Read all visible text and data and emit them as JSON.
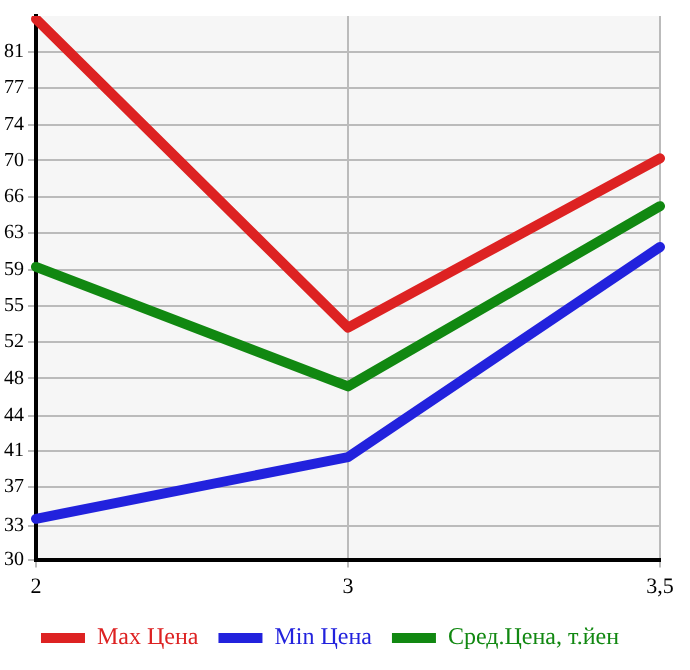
{
  "chart_data": {
    "type": "line",
    "categories": [
      "2",
      "3",
      "3,5"
    ],
    "series": [
      {
        "name": "Max Цена",
        "color": "#dd2222",
        "values": [
          84.3,
          53.3,
          70.3
        ]
      },
      {
        "name": "Min Цена",
        "color": "#2222dd",
        "values": [
          34.1,
          40.3,
          61.4
        ]
      },
      {
        "name": "Сред.Цена, т.йен",
        "color": "#118811",
        "values": [
          59.4,
          47.4,
          65.5
        ]
      }
    ],
    "ylim": [
      30,
      84.6
    ],
    "yticks": [
      30,
      {
        "value": 33.4,
        "label": "33"
      },
      {
        "value": 37.3,
        "label": "37"
      },
      {
        "value": 40.9,
        "label": "41"
      },
      {
        "value": 44.4,
        "label": "44"
      },
      {
        "value": 48.2,
        "label": "48"
      },
      {
        "value": 51.9,
        "label": "52"
      },
      {
        "value": 55.5,
        "label": "55"
      },
      {
        "value": 59.1,
        "label": "59"
      },
      {
        "value": 62.8,
        "label": "63"
      },
      {
        "value": 66.4,
        "label": "66"
      },
      {
        "value": 70.1,
        "label": "70"
      },
      {
        "value": 73.7,
        "label": "74"
      },
      {
        "value": 77.4,
        "label": "77"
      },
      81
    ],
    "grid": true,
    "legend": "bottom",
    "marker": "none",
    "line_style": "solid"
  }
}
